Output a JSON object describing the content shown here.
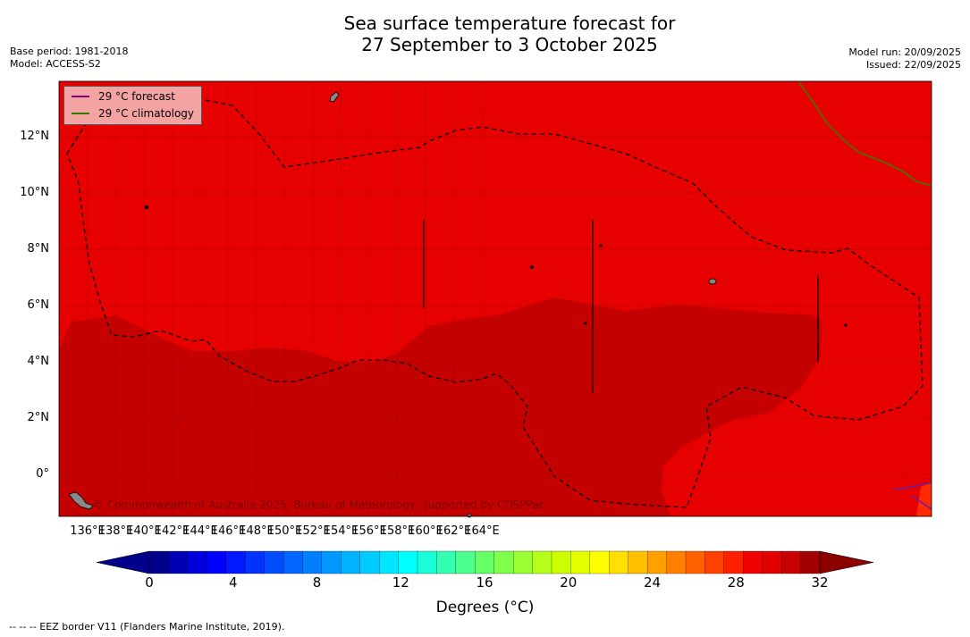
{
  "title_line1": "Sea surface temperature forecast for",
  "title_line2": "27 September to 3 October 2025",
  "meta_left": {
    "base_period": "Base period: 1981-2018",
    "model": "Model: ACCESS-S2"
  },
  "meta_right": {
    "model_run": "Model run: 20/09/2025",
    "issued": "Issued: 22/09/2025"
  },
  "legend": {
    "forecast": {
      "label": "29 °C  forecast",
      "color": "#800080"
    },
    "climatology": {
      "label": "29 °C  climatology",
      "color": "#2e7d00"
    }
  },
  "lat_labels": [
    "12°N",
    "10°N",
    "8°N",
    "6°N",
    "4°N",
    "2°N",
    "0°"
  ],
  "lon_labels": [
    "136°E",
    "138°E",
    "140°E",
    "142°E",
    "144°E",
    "146°E",
    "148°E",
    "150°E",
    "152°E",
    "154°E",
    "156°E",
    "158°E",
    "160°E",
    "162°E",
    "164°E"
  ],
  "credit": "© Commonwealth of Australia 2025, Bureau of Meteorology, supported by COSPPac",
  "colorbar": {
    "ticks": [
      "0",
      "4",
      "8",
      "12",
      "16",
      "20",
      "24",
      "28",
      "32"
    ],
    "label": "Degrees (°C)",
    "colors": [
      "#00008b",
      "#0000b4",
      "#0000dc",
      "#0000ff",
      "#0019ff",
      "#0033ff",
      "#004dff",
      "#0066ff",
      "#0080ff",
      "#0099ff",
      "#00b3ff",
      "#00ccff",
      "#00e6ff",
      "#00ffff",
      "#1affd9",
      "#33ffb3",
      "#4dff8c",
      "#66ff66",
      "#80ff4d",
      "#99ff33",
      "#b3ff1a",
      "#ccff00",
      "#e6ff00",
      "#ffff00",
      "#ffe000",
      "#ffc000",
      "#ffa000",
      "#ff8000",
      "#ff6000",
      "#ff4000",
      "#ff2000",
      "#f00000",
      "#e00000",
      "#c80000",
      "#a00000"
    ],
    "low_color": "#00008b",
    "high_color": "#8b0000"
  },
  "field_colors": {
    "base": "#e60000",
    "warm": "#c40000"
  },
  "footnote": "--  --  -- EEZ border V11 (Flanders Marine Institute, 2019)."
}
